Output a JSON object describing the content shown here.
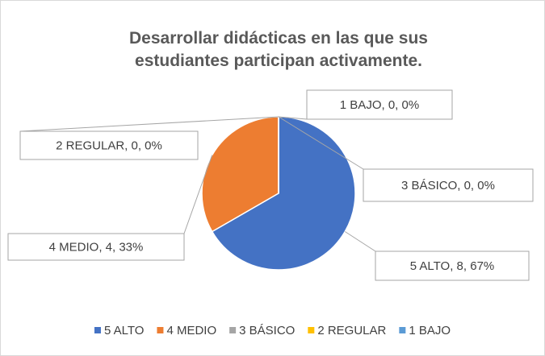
{
  "chart_data": {
    "type": "pie",
    "title": "Desarrollar didácticas en las que sus estudiantes participan activamente.",
    "categories": [
      "5 ALTO",
      "4 MEDIO",
      "3 BÁSICO",
      "2 REGULAR",
      "1 BAJO"
    ],
    "values": [
      8,
      4,
      0,
      0,
      0
    ],
    "value_labels": [
      "5 ALTO, 8, 67%",
      "4 MEDIO, 4, 33%",
      "3 BÁSICO, 0, 0%",
      "2 REGULAR, 0, 0%",
      "1 BAJO, 0, 0%"
    ],
    "colors": [
      "#4472c4",
      "#ed7d31",
      "#a5a5a5",
      "#ffc000",
      "#5b9bd5"
    ],
    "legend": "bottom"
  }
}
